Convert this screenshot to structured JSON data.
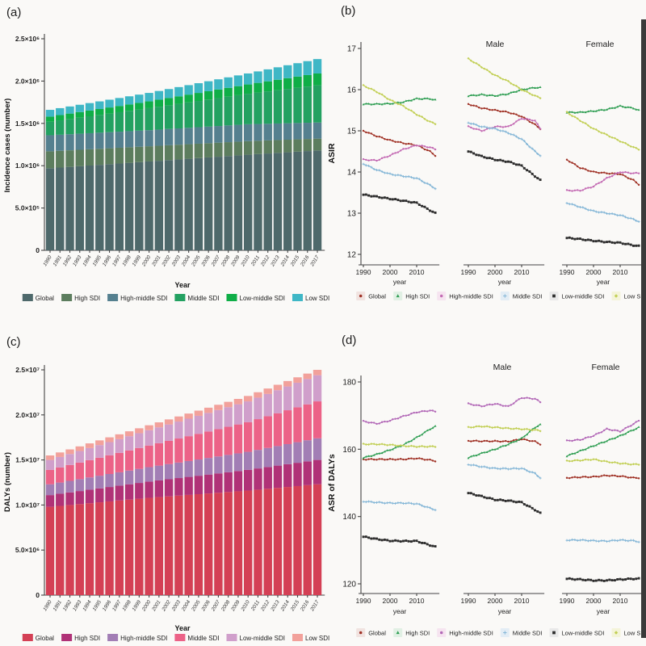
{
  "page": {
    "background": "#faf9f7",
    "edge_strip_color": "#3a3a3a"
  },
  "chart_data": [
    {
      "id": "a",
      "panel_label": "(a)",
      "type": "bar",
      "stacked": true,
      "xlabel": "Year",
      "ylabel": "Incidence cases (number)",
      "ylim": [
        0,
        2500000
      ],
      "grid": false,
      "legend_position": "bottom",
      "yticks": [
        {
          "v": 2500000,
          "label": "2.5×10⁶"
        },
        {
          "v": 2000000,
          "label": "2.0×10⁶"
        },
        {
          "v": 1500000,
          "label": "1.5×10⁶"
        },
        {
          "v": 1000000,
          "label": "1.0×10⁶"
        },
        {
          "v": 500000,
          "label": "5.0×10⁵"
        },
        {
          "v": 0,
          "label": "0"
        }
      ],
      "categories": [
        "1990",
        "1991",
        "1992",
        "1993",
        "1994",
        "1995",
        "1996",
        "1997",
        "1998",
        "1999",
        "2000",
        "2001",
        "2002",
        "2003",
        "2004",
        "2005",
        "2006",
        "2007",
        "2008",
        "2009",
        "2010",
        "2011",
        "2012",
        "2013",
        "2014",
        "2015",
        "2016",
        "2017"
      ],
      "anchor_years": [
        1990,
        2000,
        2010,
        2017
      ],
      "series": [
        {
          "name": "Global",
          "color": "#4e696b",
          "anchors": [
            970000,
            1050000,
            1130000,
            1180000
          ]
        },
        {
          "name": "High SDI",
          "color": "#5c7d5e",
          "anchors": [
            200000,
            180000,
            160000,
            140000
          ]
        },
        {
          "name": "High-middle SDI",
          "color": "#55808f",
          "anchors": [
            190000,
            190000,
            200000,
            190000
          ]
        },
        {
          "name": "Middle SDI",
          "color": "#23a161",
          "anchors": [
            160000,
            260000,
            360000,
            440000
          ]
        },
        {
          "name": "Low-middle SDI",
          "color": "#0fae47",
          "anchors": [
            60000,
            80000,
            110000,
            140000
          ]
        },
        {
          "name": "Low SDI",
          "color": "#3fb7c6",
          "anchors": [
            80000,
            100000,
            130000,
            170000
          ]
        }
      ]
    },
    {
      "id": "b",
      "panel_label": "(b)",
      "type": "line",
      "xlabel": "year",
      "ylabel": "ASIR",
      "ylim": [
        12,
        17
      ],
      "yticks": [
        12,
        13,
        14,
        15,
        16,
        17
      ],
      "xticks": [
        1990,
        2000,
        2010
      ],
      "x_range": [
        1990,
        2017
      ],
      "grid": false,
      "legend_position": "bottom",
      "subpanels": [
        {
          "key": "both",
          "title": ""
        },
        {
          "key": "male",
          "title": "Male"
        },
        {
          "key": "female",
          "title": "Female"
        }
      ],
      "anchor_years": [
        1990,
        1995,
        2000,
        2005,
        2010,
        2015,
        2017
      ],
      "series": [
        {
          "name": "Global",
          "color": "#a03226",
          "marker": "dot",
          "key_bg": "#f1e3e0",
          "both": [
            15.0,
            14.87,
            14.77,
            14.7,
            14.65,
            14.5,
            14.4
          ],
          "male": [
            15.65,
            15.55,
            15.5,
            15.45,
            15.35,
            15.15,
            15.05
          ],
          "female": [
            14.3,
            14.1,
            14.0,
            13.97,
            13.95,
            13.8,
            13.7
          ]
        },
        {
          "name": "High SDI",
          "color": "#2f9e53",
          "marker": "tri",
          "key_bg": "#e1f0e4",
          "both": [
            15.65,
            15.65,
            15.66,
            15.7,
            15.78,
            15.78,
            15.75
          ],
          "male": [
            15.85,
            15.88,
            15.85,
            15.9,
            16.0,
            16.05,
            16.05
          ],
          "female": [
            15.45,
            15.45,
            15.48,
            15.52,
            15.6,
            15.55,
            15.5
          ]
        },
        {
          "name": "High-middle SDI",
          "color": "#c46cb4",
          "marker": "dot",
          "key_bg": "#f6e4f0",
          "both": [
            14.3,
            14.28,
            14.4,
            14.55,
            14.65,
            14.6,
            14.55
          ],
          "male": [
            15.1,
            15.0,
            15.1,
            15.1,
            15.3,
            15.25,
            15.05
          ],
          "female": [
            13.55,
            13.55,
            13.65,
            13.85,
            14.0,
            13.97,
            13.97
          ]
        },
        {
          "name": "Middle SDI",
          "color": "#85b7d7",
          "marker": "plus",
          "key_bg": "#e3edf5",
          "both": [
            14.2,
            14.05,
            13.95,
            13.9,
            13.85,
            13.68,
            13.6
          ],
          "male": [
            15.2,
            15.1,
            15.05,
            14.95,
            14.8,
            14.5,
            14.4
          ],
          "female": [
            13.25,
            13.15,
            13.05,
            13.0,
            12.95,
            12.85,
            12.8
          ]
        },
        {
          "name": "Low-middle SDI",
          "color": "#2d2d2d",
          "marker": "sq",
          "key_bg": "#e9e9e9",
          "both": [
            13.45,
            13.4,
            13.35,
            13.3,
            13.25,
            13.07,
            13.0
          ],
          "male": [
            14.5,
            14.38,
            14.3,
            14.25,
            14.15,
            13.9,
            13.8
          ],
          "female": [
            12.4,
            12.37,
            12.33,
            12.3,
            12.28,
            12.22,
            12.2
          ]
        },
        {
          "name": "Low SDI",
          "color": "#c2cf55",
          "marker": "diam",
          "key_bg": "#f4f4d9",
          "both": [
            16.1,
            15.95,
            15.75,
            15.6,
            15.4,
            15.22,
            15.17
          ],
          "male": [
            16.75,
            16.55,
            16.35,
            16.2,
            16.0,
            15.85,
            15.8
          ],
          "female": [
            15.45,
            15.25,
            15.05,
            14.9,
            14.75,
            14.6,
            14.55
          ]
        }
      ]
    },
    {
      "id": "c",
      "panel_label": "(c)",
      "type": "bar",
      "stacked": true,
      "xlabel": "Year",
      "ylabel": "DALYs (number)",
      "ylim": [
        0,
        25000000
      ],
      "grid": false,
      "legend_position": "bottom",
      "yticks": [
        {
          "v": 25000000,
          "label": "2.5×10⁷"
        },
        {
          "v": 20000000,
          "label": "2.0×10⁷"
        },
        {
          "v": 15000000,
          "label": "1.5×10⁷"
        },
        {
          "v": 10000000,
          "label": "1.0×10⁷"
        },
        {
          "v": 5000000,
          "label": "5.0×10⁶"
        },
        {
          "v": 0,
          "label": "0"
        }
      ],
      "categories": [
        "1990",
        "1991",
        "1992",
        "1993",
        "1994",
        "1995",
        "1996",
        "1997",
        "1998",
        "1999",
        "2000",
        "2001",
        "2002",
        "2003",
        "2004",
        "2005",
        "2006",
        "2007",
        "2008",
        "2009",
        "2010",
        "2011",
        "2012",
        "2013",
        "2014",
        "2015",
        "2016",
        "2017"
      ],
      "anchor_years": [
        1990,
        2000,
        2010,
        2017
      ],
      "series": [
        {
          "name": "Global",
          "color": "#d44055",
          "anchors": [
            9800000,
            10800000,
            11600000,
            12300000
          ]
        },
        {
          "name": "High SDI",
          "color": "#b03277",
          "anchors": [
            1300000,
            1800000,
            2300000,
            2700000
          ]
        },
        {
          "name": "High-middle SDI",
          "color": "#a27eb5",
          "anchors": [
            1200000,
            1600000,
            2000000,
            2400000
          ]
        },
        {
          "name": "Middle SDI",
          "color": "#ec6287",
          "anchors": [
            1600000,
            2400000,
            3300000,
            4100000
          ]
        },
        {
          "name": "Low-middle SDI",
          "color": "#d09fcb",
          "anchors": [
            1100000,
            1700000,
            2300000,
            2900000
          ]
        },
        {
          "name": "Low SDI",
          "color": "#f2a19b",
          "anchors": [
            500000,
            550000,
            600000,
            600000
          ]
        }
      ]
    },
    {
      "id": "d",
      "panel_label": "(d)",
      "type": "line",
      "xlabel": "year",
      "ylabel": "ASR of DALYs",
      "ylim": [
        120,
        180
      ],
      "yticks": [
        120,
        140,
        160,
        180
      ],
      "xticks": [
        1990,
        2000,
        2010
      ],
      "x_range": [
        1990,
        2017
      ],
      "grid": false,
      "legend_position": "bottom",
      "subpanels": [
        {
          "key": "both",
          "title": ""
        },
        {
          "key": "male",
          "title": "Male"
        },
        {
          "key": "female",
          "title": "Female"
        }
      ],
      "anchor_years": [
        1990,
        1995,
        2000,
        2005,
        2010,
        2015,
        2017
      ],
      "series": [
        {
          "name": "Global",
          "color": "#a03226",
          "marker": "dot",
          "key_bg": "#f1e3e0",
          "both": [
            157.0,
            157.0,
            157.0,
            157.0,
            157.3,
            156.8,
            156.5
          ],
          "male": [
            162.5,
            162.4,
            162.4,
            162.3,
            163.0,
            162.3,
            161.5
          ],
          "female": [
            151.5,
            151.7,
            151.8,
            152.2,
            152.0,
            151.5,
            151.5
          ]
        },
        {
          "name": "High SDI",
          "color": "#2f9e53",
          "marker": "tri",
          "key_bg": "#e1f0e4",
          "both": [
            157.5,
            158.5,
            159.8,
            161.3,
            163.5,
            166.0,
            166.8
          ],
          "male": [
            157.5,
            158.8,
            160.0,
            161.5,
            163.2,
            166.5,
            167.3
          ],
          "female": [
            158.0,
            159.5,
            161.0,
            162.5,
            164.0,
            165.8,
            166.5
          ]
        },
        {
          "name": "High-middle SDI",
          "color": "#b36ab8",
          "marker": "dot",
          "key_bg": "#f6e4f0",
          "both": [
            168.3,
            167.6,
            168.5,
            169.8,
            171.0,
            171.5,
            171.2
          ],
          "male": [
            173.5,
            172.8,
            173.5,
            172.7,
            175.3,
            175.0,
            174.0
          ],
          "female": [
            162.5,
            162.8,
            164.0,
            166.0,
            165.3,
            167.5,
            168.5
          ]
        },
        {
          "name": "Middle SDI",
          "color": "#85b7d7",
          "marker": "plus",
          "key_bg": "#e3edf5",
          "both": [
            144.5,
            144.2,
            144.0,
            144.0,
            143.8,
            142.5,
            142.0
          ],
          "male": [
            155.5,
            154.8,
            154.3,
            154.2,
            154.3,
            152.8,
            151.5
          ],
          "female": [
            133.0,
            133.0,
            132.8,
            132.7,
            133.0,
            132.8,
            132.5
          ]
        },
        {
          "name": "Low-middle SDI",
          "color": "#2d2d2d",
          "marker": "sq",
          "key_bg": "#e9e9e9",
          "both": [
            134.0,
            133.3,
            132.8,
            132.7,
            132.7,
            131.5,
            131.0
          ],
          "male": [
            147.0,
            146.0,
            145.0,
            144.7,
            144.2,
            142.0,
            141.0
          ],
          "female": [
            121.5,
            121.3,
            121.0,
            121.0,
            121.3,
            121.5,
            121.5
          ]
        },
        {
          "name": "Low SDI",
          "color": "#c2cf55",
          "marker": "diam",
          "key_bg": "#f4f4d9",
          "both": [
            161.5,
            161.5,
            161.3,
            161.0,
            160.8,
            160.8,
            160.8
          ],
          "male": [
            166.5,
            166.8,
            166.5,
            166.2,
            166.0,
            165.7,
            165.5
          ],
          "female": [
            156.5,
            156.7,
            157.0,
            156.3,
            155.8,
            155.5,
            155.5
          ]
        }
      ]
    }
  ]
}
